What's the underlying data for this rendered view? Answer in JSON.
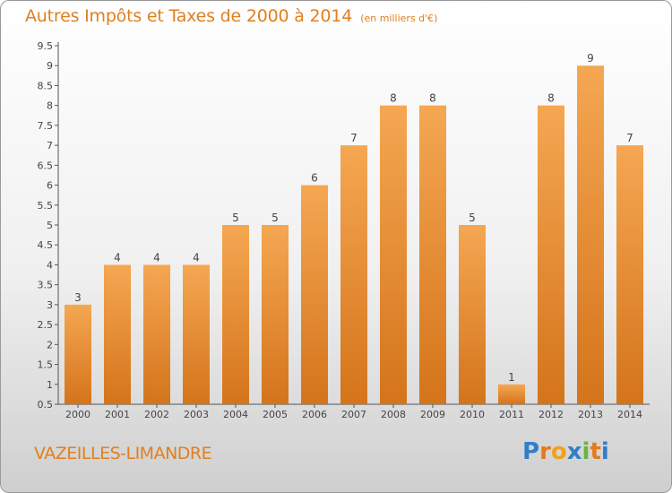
{
  "title": "Autres Impôts et Taxes de 2000 à 2014",
  "unit": "(en milliers d'€)",
  "city": "VAZEILLES-LIMANDRE",
  "brand": {
    "text": "Proxiti",
    "letter_colors": [
      "#2f7fc7",
      "#e37a1d",
      "#f0a21a",
      "#2f7fc7",
      "#6db33f",
      "#e37a1d",
      "#2f7fc7"
    ]
  },
  "colors": {
    "title": "#e07f1f",
    "bar_light": "#f5a752",
    "bar_dark": "#d4741b"
  },
  "chart_data": {
    "type": "bar",
    "categories": [
      "2000",
      "2001",
      "2002",
      "2003",
      "2004",
      "2005",
      "2006",
      "2007",
      "2008",
      "2009",
      "2010",
      "2011",
      "2012",
      "2013",
      "2014"
    ],
    "values": [
      3,
      4,
      4,
      4,
      5,
      5,
      6,
      7,
      8,
      8,
      5,
      1,
      8,
      9,
      7
    ],
    "value_labels": [
      "3",
      "4",
      "4",
      "4",
      "5",
      "5",
      "6",
      "7",
      "8",
      "8",
      "5",
      "1",
      "8",
      "9",
      "7"
    ],
    "y_ticks": [
      "0.5",
      "1",
      "1.5",
      "2",
      "2.5",
      "3",
      "3.5",
      "4",
      "4.5",
      "5",
      "5.5",
      "6",
      "6.5",
      "7",
      "7.5",
      "8",
      "8.5",
      "9",
      "9.5"
    ],
    "ylim": [
      0.5,
      9.5
    ],
    "grid": false,
    "xlabel": "",
    "ylabel": ""
  }
}
